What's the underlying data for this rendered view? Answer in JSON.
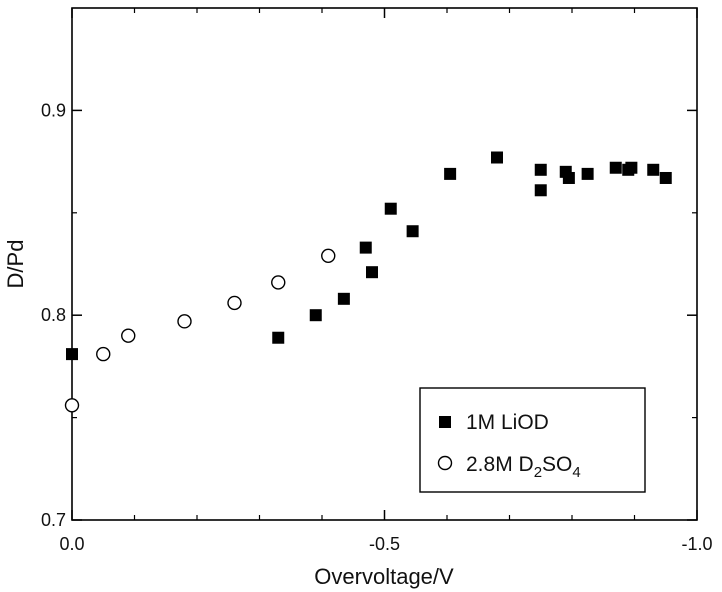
{
  "chart_data": {
    "type": "scatter",
    "title": "",
    "xlabel": "Overvoltage/V",
    "ylabel": "D/Pd",
    "xlim": [
      0.0,
      -1.0
    ],
    "ylim": [
      0.7,
      0.95
    ],
    "x_ticks": [
      0.0,
      -0.5,
      -1.0
    ],
    "x_tick_labels": [
      "0.0",
      "-0.5",
      "-1.0"
    ],
    "y_ticks": [
      0.7,
      0.8,
      0.9
    ],
    "y_tick_labels": [
      "0.7",
      "0.8",
      "0.9"
    ],
    "grid": false,
    "legend_position": "bottom-right",
    "series": [
      {
        "name": "1M LiOD",
        "marker": "filled-square",
        "color": "#000000",
        "points": [
          [
            0.0,
            0.781
          ],
          [
            -0.33,
            0.789
          ],
          [
            -0.39,
            0.8
          ],
          [
            -0.435,
            0.808
          ],
          [
            -0.47,
            0.833
          ],
          [
            -0.48,
            0.821
          ],
          [
            -0.51,
            0.852
          ],
          [
            -0.545,
            0.841
          ],
          [
            -0.605,
            0.869
          ],
          [
            -0.68,
            0.877
          ],
          [
            -0.75,
            0.871
          ],
          [
            -0.75,
            0.861
          ],
          [
            -0.79,
            0.87
          ],
          [
            -0.795,
            0.867
          ],
          [
            -0.825,
            0.869
          ],
          [
            -0.87,
            0.872
          ],
          [
            -0.89,
            0.871
          ],
          [
            -0.895,
            0.872
          ],
          [
            -0.93,
            0.871
          ],
          [
            -0.95,
            0.867
          ]
        ]
      },
      {
        "name": "2.8M D2SO4",
        "legend_label": {
          "main": "2.8M D",
          "sub1": "2",
          "mid": "SO",
          "sub2": "4"
        },
        "marker": "open-circle",
        "color": "#000000",
        "points": [
          [
            0.0,
            0.756
          ],
          [
            -0.05,
            0.781
          ],
          [
            -0.09,
            0.79
          ],
          [
            -0.18,
            0.797
          ],
          [
            -0.26,
            0.806
          ],
          [
            -0.33,
            0.816
          ],
          [
            -0.41,
            0.829
          ]
        ]
      }
    ]
  }
}
